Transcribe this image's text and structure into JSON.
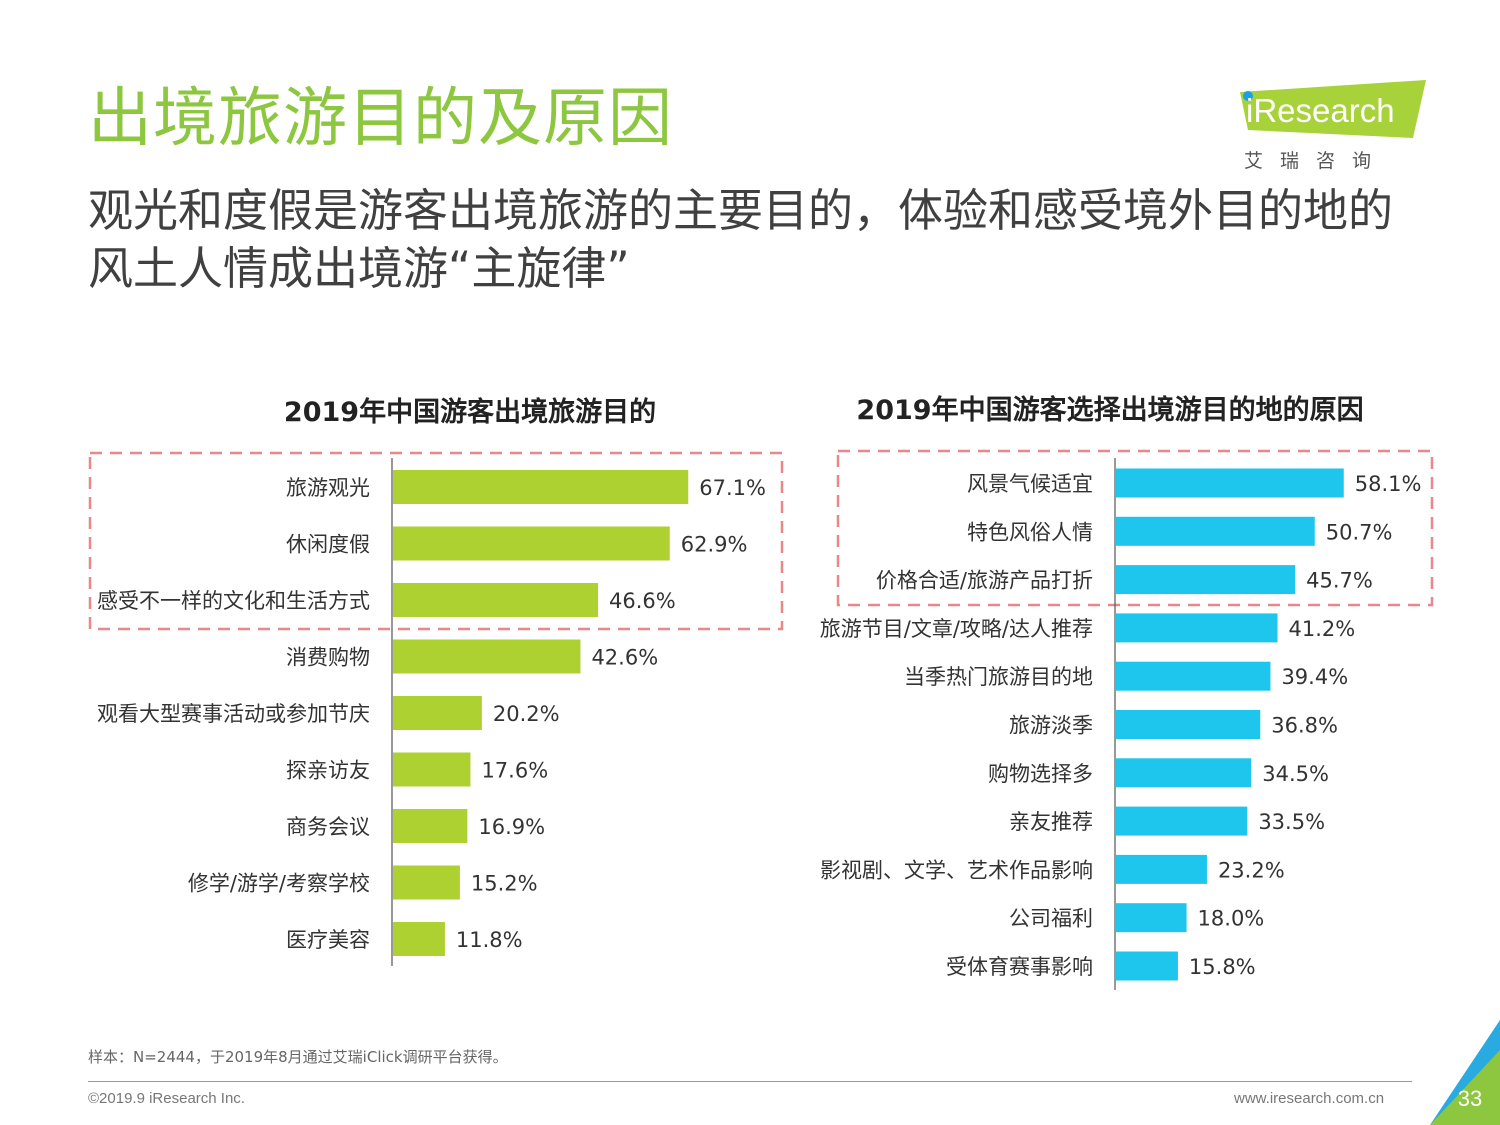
{
  "page": {
    "title": "出境旅游目的及原因",
    "subtitle": "观光和度假是游客出境旅游的主要目的，体验和感受境外目的地的风土人情成出境游“主旋律”"
  },
  "logo": {
    "text": "iResearch",
    "cn": "艾瑞咨询",
    "colors": {
      "banner": "#a8d23a",
      "dot": "#1aa0e8"
    }
  },
  "chart_data": [
    {
      "type": "bar",
      "orientation": "horizontal",
      "title": "2019年中国游客出境旅游目的",
      "categories": [
        "旅游观光",
        "休闲度假",
        "感受不一样的文化和生活方式",
        "消费购物",
        "观看大型赛事活动或参加节庆",
        "探亲访友",
        "商务会议",
        "修学/游学/考察学校",
        "医疗美容"
      ],
      "values": [
        67.1,
        62.9,
        46.6,
        42.6,
        20.2,
        17.6,
        16.9,
        15.2,
        11.8
      ],
      "value_labels": [
        "67.1%",
        "62.9%",
        "46.6%",
        "42.6%",
        "20.2%",
        "17.6%",
        "16.9%",
        "15.2%",
        "11.8%"
      ],
      "unit": "%",
      "xlim": [
        0,
        100
      ],
      "color": "#acd130",
      "highlight_count": 3,
      "highlight_color": "#e8888a",
      "grid": false
    },
    {
      "type": "bar",
      "orientation": "horizontal",
      "title": "2019年中国游客选择出境游目的地的原因",
      "categories": [
        "风景气候适宜",
        "特色风俗人情",
        "价格合适/旅游产品打折",
        "旅游节目/文章/攻略/达人推荐",
        "当季热门旅游目的地",
        "旅游淡季",
        "购物选择多",
        "亲友推荐",
        "影视剧、文学、艺术作品影响",
        "公司福利",
        "受体育赛事影响"
      ],
      "values": [
        58.1,
        50.7,
        45.7,
        41.2,
        39.4,
        36.8,
        34.5,
        33.5,
        23.2,
        18.0,
        15.8
      ],
      "value_labels": [
        "58.1%",
        "50.7%",
        "45.7%",
        "41.2%",
        "39.4%",
        "36.8%",
        "34.5%",
        "33.5%",
        "23.2%",
        "18.0%",
        "15.8%"
      ],
      "unit": "%",
      "xlim": [
        0,
        100
      ],
      "color": "#1ec6ee",
      "highlight_count": 3,
      "highlight_color": "#e8888a",
      "grid": false
    }
  ],
  "footer": {
    "note": "样本：N=2444，于2019年8月通过艾瑞iClick调研平台获得。",
    "copyright": "©2019.9 iResearch Inc.",
    "website": "www.iresearch.com.cn",
    "page_number": "33",
    "colors": {
      "corner_green": "#8dc63f",
      "corner_blue": "#29abe2"
    }
  }
}
